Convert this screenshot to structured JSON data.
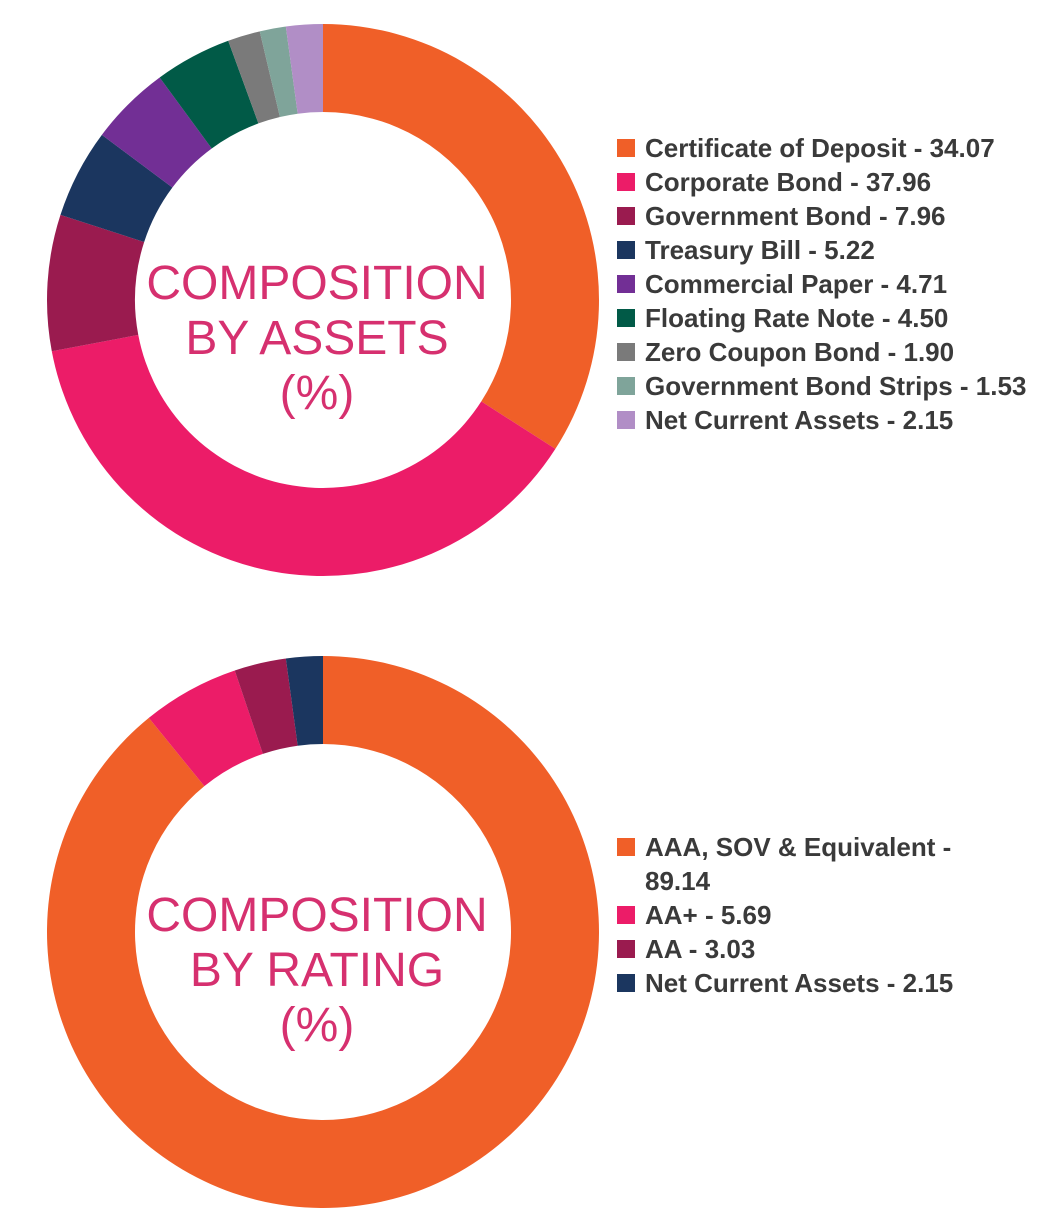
{
  "chart_data": [
    {
      "type": "pie",
      "donut": true,
      "center_title": [
        "COMPOSITION",
        "BY ASSETS",
        "(%)"
      ],
      "series": [
        {
          "name": "Certificate of Deposit",
          "label": "Certificate of Deposit - 34.07",
          "value": 34.07,
          "color": "#f05f28"
        },
        {
          "name": "Corporate Bond",
          "label": "Corporate Bond - 37.96",
          "value": 37.96,
          "color": "#ec1c68"
        },
        {
          "name": "Government Bond",
          "label": "Government Bond - 7.96",
          "value": 7.96,
          "color": "#9a1b4f"
        },
        {
          "name": "Treasury Bill",
          "label": "Treasury Bill - 5.22",
          "value": 5.22,
          "color": "#1b365f"
        },
        {
          "name": "Commercial Paper",
          "label": "Commercial Paper - 4.71",
          "value": 4.71,
          "color": "#722f95"
        },
        {
          "name": "Floating Rate Note",
          "label": "Floating Rate Note - 4.50",
          "value": 4.5,
          "color": "#015a47"
        },
        {
          "name": "Zero Coupon Bond",
          "label": "Zero Coupon Bond - 1.90",
          "value": 1.9,
          "color": "#7a7a7a"
        },
        {
          "name": "Government Bond Strips",
          "label": "Government Bond Strips - 1.53",
          "value": 1.53,
          "color": "#7fa49a"
        },
        {
          "name": "Net Current Assets",
          "label": "Net Current Assets - 2.15",
          "value": 2.15,
          "color": "#b18ec6"
        }
      ],
      "legend": "right"
    },
    {
      "type": "pie",
      "donut": true,
      "center_title": [
        "COMPOSITION",
        "BY RATING",
        "(%)"
      ],
      "series": [
        {
          "name": "AAA, SOV & Equivalent",
          "label": "AAA, SOV & Equivalent - 89.14",
          "value": 89.14,
          "color": "#f05f28"
        },
        {
          "name": "AA+",
          "label": "AA+ - 5.69",
          "value": 5.69,
          "color": "#ec1c68"
        },
        {
          "name": "AA",
          "label": "AA - 3.03",
          "value": 3.03,
          "color": "#9a1b4f"
        },
        {
          "name": "Net Current Assets",
          "label": "Net Current Assets - 2.15",
          "value": 2.15,
          "color": "#1b365f"
        }
      ],
      "legend": "right"
    }
  ]
}
